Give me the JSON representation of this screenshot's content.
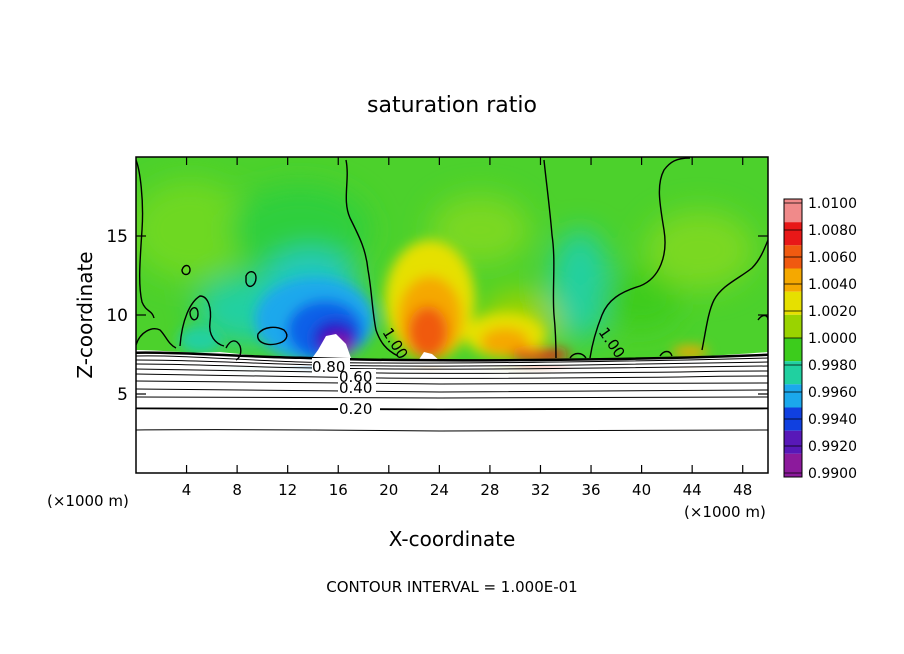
{
  "chart_data": {
    "type": "heatmap",
    "title": "saturation ratio",
    "xlabel": "X-coordinate",
    "ylabel": "Z-coordinate",
    "x_unit": "(×1000 m)",
    "footer": "CONTOUR INTERVAL = 1.000E-01",
    "xlim": [
      0,
      50
    ],
    "ylim": [
      0,
      20
    ],
    "x_ticks": [
      4,
      8,
      12,
      16,
      20,
      24,
      28,
      32,
      36,
      40,
      44,
      48
    ],
    "y_ticks": [
      5,
      10,
      15
    ],
    "colorbar": {
      "levels": [
        "1.0100",
        "1.0080",
        "1.0060",
        "1.0040",
        "1.0020",
        "1.0000",
        "0.9980",
        "0.9960",
        "0.9940",
        "0.9920",
        "0.9900"
      ],
      "colors": [
        "#f08a8a",
        "#e81818",
        "#f05a10",
        "#f5a800",
        "#e6e000",
        "#9ad300",
        "#3ccc1c",
        "#20d0a0",
        "#1ba8ec",
        "#1040e0",
        "#5818b8",
        "#8c1a9c"
      ]
    },
    "contour_labels": [
      {
        "text": "0.80",
        "x": 15.2,
        "y": 6.7
      },
      {
        "text": "0.60",
        "x": 16.5,
        "y": 6.1
      },
      {
        "text": "0.40",
        "x": 16.5,
        "y": 5.4
      },
      {
        "text": "0.20",
        "x": 16.5,
        "y": 4.0
      },
      {
        "text": "1.00",
        "x": 19.3,
        "y": 8.2
      },
      {
        "text": "1.00",
        "x": 36.8,
        "y": 8.2
      }
    ],
    "field_regions": [
      {
        "name": "supersaturated-plume-x22",
        "x": 22.5,
        "y": 10.5,
        "value": 1.006
      },
      {
        "name": "supersaturated-plume-x29",
        "x": 29,
        "y": 9.0,
        "value": 1.004
      },
      {
        "name": "subsaturated-region-x15",
        "x": 14.5,
        "y": 9.0,
        "value": 0.992
      },
      {
        "name": "subsaturated-region-x35",
        "x": 35.5,
        "y": 11.0,
        "value": 0.997
      }
    ]
  }
}
